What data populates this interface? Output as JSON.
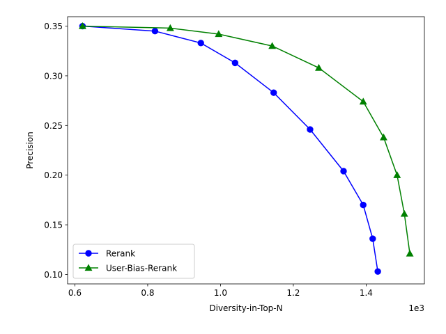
{
  "chart_data": {
    "type": "line",
    "xlabel": "Diversity-in-Top-N",
    "ylabel": "Precision",
    "x_offset_label": "1e3",
    "xlim": [
      0.58,
      1.56
    ],
    "ylim": [
      0.0905,
      0.3595
    ],
    "x_ticks": [
      0.6,
      0.8,
      1.0,
      1.2,
      1.4
    ],
    "x_tick_labels": [
      "0.6",
      "0.8",
      "1.0",
      "1.2",
      "1.4"
    ],
    "y_ticks": [
      0.1,
      0.15,
      0.2,
      0.25,
      0.3,
      0.35
    ],
    "y_tick_labels": [
      "0.10",
      "0.15",
      "0.20",
      "0.25",
      "0.30",
      "0.35"
    ],
    "grid": false,
    "legend_position": "lower-left",
    "series": [
      {
        "name": "Rerank",
        "color": "#0000ff",
        "marker": "circle",
        "x": [
          0.621,
          0.82,
          0.946,
          1.04,
          1.146,
          1.246,
          1.338,
          1.392,
          1.418,
          1.432
        ],
        "y": [
          0.35,
          0.345,
          0.333,
          0.313,
          0.283,
          0.246,
          0.204,
          0.17,
          0.136,
          0.103
        ]
      },
      {
        "name": "User-Bias-Rerank",
        "color": "#008000",
        "marker": "triangle",
        "x": [
          0.621,
          0.862,
          0.995,
          1.142,
          1.27,
          1.392,
          1.448,
          1.485,
          1.505,
          1.52
        ],
        "y": [
          0.35,
          0.348,
          0.342,
          0.33,
          0.308,
          0.274,
          0.238,
          0.2,
          0.161,
          0.121
        ]
      }
    ]
  }
}
